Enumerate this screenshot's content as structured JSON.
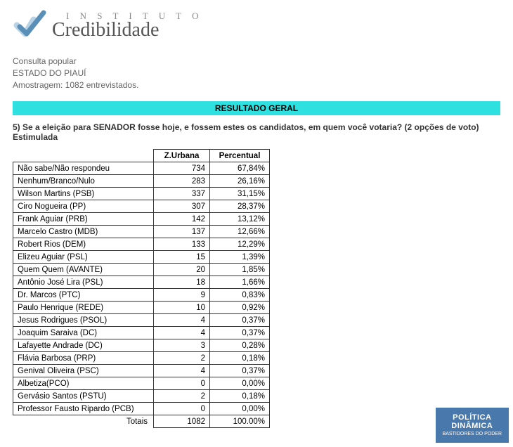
{
  "logo": {
    "top_text": "I N S T I T U T O",
    "main_text": "Credibilidade",
    "check_color_light": "#b9d3e6",
    "check_color_dark": "#5a8fb8"
  },
  "meta": {
    "line1": "Consulta popular",
    "line2": "ESTADO DO PIAUÍ",
    "line3": "Amostragem: 1082 entrevistados."
  },
  "banner": {
    "text": "RESULTADO GERAL",
    "bg_color": "#2fe0e0"
  },
  "question": "5) Se a eleição para SENADOR fosse hoje, e fossem estes os candidatos, em quem você votaria? (2 opções de voto) Estimulada",
  "table": {
    "headers": [
      "",
      "Z.Urbana",
      "Percentual"
    ],
    "rows": [
      [
        "Não sabe/Não respondeu",
        "734",
        "67,84%"
      ],
      [
        "Nenhum/Branco/Nulo",
        "283",
        "26,16%"
      ],
      [
        "Wilson Martins (PSB)",
        "337",
        "31,15%"
      ],
      [
        "Ciro Nogueira (PP)",
        "307",
        "28,37%"
      ],
      [
        "Frank Aguiar (PRB)",
        "142",
        "13,12%"
      ],
      [
        "Marcelo Castro (MDB)",
        "137",
        "12,66%"
      ],
      [
        "Robert Rios (DEM)",
        "133",
        "12,29%"
      ],
      [
        "Elizeu Aguiar (PSL)",
        "15",
        "1,39%"
      ],
      [
        "Quem Quem (AVANTE)",
        "20",
        "1,85%"
      ],
      [
        "Antônio José Lira (PSL)",
        "18",
        "1,66%"
      ],
      [
        "Dr. Marcos (PTC)",
        "9",
        "0,83%"
      ],
      [
        "Paulo Henrique (REDE)",
        "10",
        "0,92%"
      ],
      [
        "Jesus Rodrigues (PSOL)",
        "4",
        "0,37%"
      ],
      [
        "Joaquim Saraiva (DC)",
        "4",
        "0,37%"
      ],
      [
        "Lafayette Andrade (DC)",
        "3",
        "0,28%"
      ],
      [
        "Flávia Barbosa (PRP)",
        "2",
        "0,18%"
      ],
      [
        "Genival Oliveira (PSC)",
        "4",
        "0,37%"
      ],
      [
        "Albetiza(PCO)",
        "0",
        "0,00%"
      ],
      [
        "Gervásio Santos (PSTU)",
        "2",
        "0,18%"
      ],
      [
        "Professor Fausto Ripardo (PCB)",
        "0",
        "0,00%"
      ]
    ],
    "totals": {
      "label": "Totais",
      "value": "1082",
      "pct": "100.00%"
    }
  },
  "watermark": {
    "line1": "POLÍTICA",
    "line2": "DINÂMICA",
    "line3": "BASTIDORES DO PODER",
    "bg_color": "#3a6ea5"
  }
}
